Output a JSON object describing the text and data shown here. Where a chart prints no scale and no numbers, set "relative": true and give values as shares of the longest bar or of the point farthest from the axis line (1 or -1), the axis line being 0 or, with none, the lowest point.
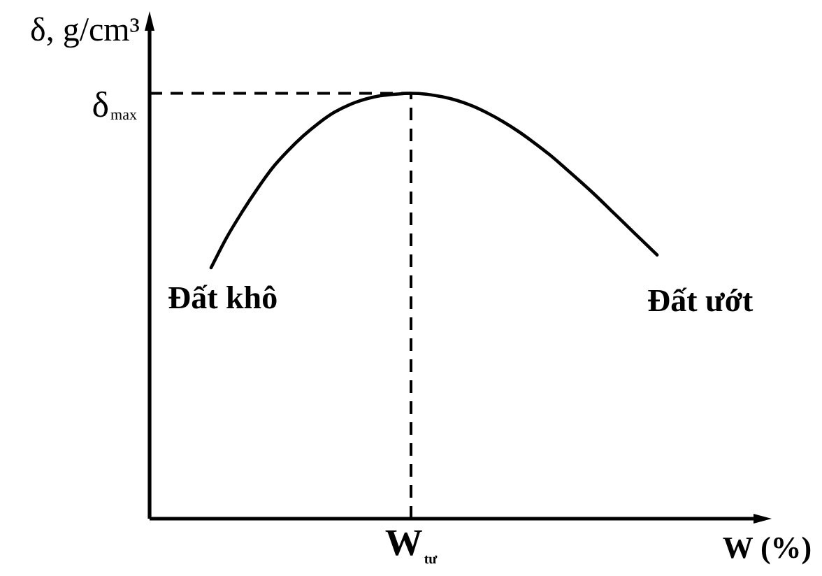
{
  "chart_data": {
    "type": "line",
    "relative": true,
    "xlabel": "W (%)",
    "ylabel": "δ, g/cm³",
    "categories": [
      null,
      null,
      null,
      null,
      null,
      null,
      null,
      null,
      null,
      null,
      null,
      null,
      null,
      null,
      null,
      null,
      null,
      null,
      null,
      null,
      null,
      null,
      null,
      null,
      null,
      null,
      null,
      null,
      null,
      null,
      null,
      null,
      null,
      null,
      null,
      null,
      null,
      null,
      null,
      null,
      null
    ],
    "series": [
      {
        "color": "#000000",
        "values": [
          null,
          null,
          null,
          null,
          0.59,
          0.66,
          0.72,
          0.775,
          0.825,
          0.865,
          0.9,
          0.93,
          0.955,
          0.973,
          0.986,
          0.994,
          0.998,
          1,
          0.998,
          0.992,
          0.983,
          0.97,
          0.953,
          0.933,
          0.91,
          0.884,
          0.856,
          0.825,
          0.793,
          0.76,
          0.725,
          0.69,
          0.655,
          0.62,
          null,
          null,
          null,
          null,
          null,
          null,
          null
        ]
      }
    ],
    "ref_lines": [
      {
        "axis": "y",
        "value": 1,
        "label": "δ$_{max}$",
        "line_style": "dashed",
        "color": "#000000"
      },
      {
        "axis": "x",
        "value": "W$_{tư}$",
        "line_style": "dashed",
        "color": "#000000"
      }
    ],
    "annotations": [
      "Đất khô",
      "Đất ướt"
    ],
    "marker": "none",
    "line_style": "solid"
  }
}
